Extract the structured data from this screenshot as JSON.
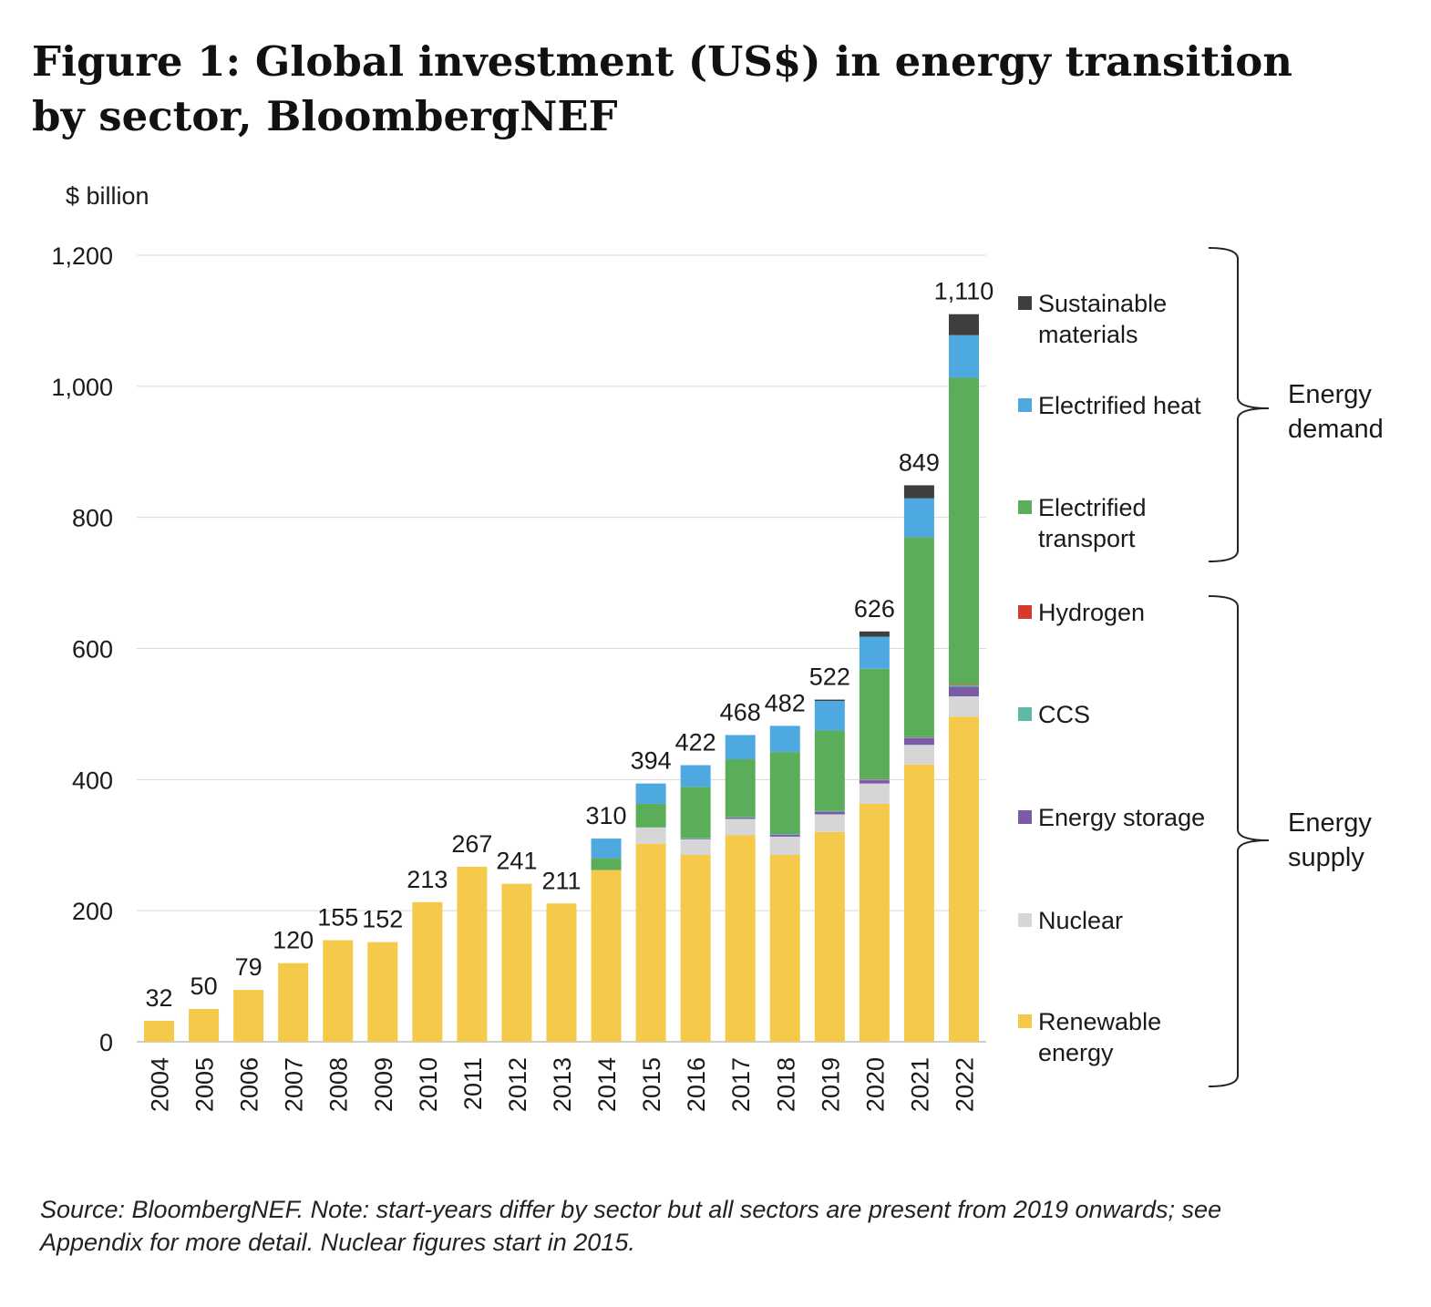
{
  "title_lines": [
    "Figure 1: Global investment (US$) in energy transition",
    "by sector, BloombergNEF"
  ],
  "source_lines": [
    "Source: BloombergNEF. Note: start-years differ by sector but all sectors are present from 2019 onwards; see",
    "Appendix for more detail. Nuclear figures start in 2015."
  ],
  "chart_data": {
    "type": "bar",
    "stacked": true,
    "ylabel": "$ billion",
    "ylim": [
      0,
      1200
    ],
    "yticks": [
      0,
      200,
      400,
      600,
      800,
      1000,
      1200
    ],
    "ytick_labels": [
      "0",
      "200",
      "400",
      "600",
      "800",
      "1,000",
      "1,200"
    ],
    "grid": true,
    "legend_position": "right",
    "categories": [
      "2004",
      "2005",
      "2006",
      "2007",
      "2008",
      "2009",
      "2010",
      "2011",
      "2012",
      "2013",
      "2014",
      "2015",
      "2016",
      "2017",
      "2018",
      "2019",
      "2020",
      "2021",
      "2022"
    ],
    "totals": [
      32,
      50,
      79,
      120,
      155,
      152,
      213,
      267,
      241,
      211,
      310,
      394,
      422,
      468,
      482,
      522,
      626,
      849,
      1110
    ],
    "total_labels": [
      "32",
      "50",
      "79",
      "120",
      "155",
      "152",
      "213",
      "267",
      "241",
      "211",
      "310",
      "394",
      "422",
      "468",
      "482",
      "522",
      "626",
      "849",
      "1,110"
    ],
    "series": [
      {
        "name": "Renewable energy",
        "color": "#F5C94A",
        "values": [
          32,
          50,
          79,
          120,
          155,
          152,
          213,
          267,
          241,
          211,
          262,
          302,
          285,
          315,
          285,
          320,
          363,
          423,
          496
        ]
      },
      {
        "name": "Nuclear",
        "color": "#D6D6D6",
        "values": [
          0,
          0,
          0,
          0,
          0,
          0,
          0,
          0,
          0,
          0,
          0,
          25,
          24,
          25,
          28,
          27,
          31,
          30,
          31
        ]
      },
      {
        "name": "Energy storage",
        "color": "#7B5BA6",
        "values": [
          0,
          0,
          0,
          0,
          0,
          0,
          0,
          0,
          0,
          0,
          0,
          0,
          1,
          2,
          3,
          4,
          5,
          10,
          15
        ]
      },
      {
        "name": "CCS",
        "color": "#5FB8A8",
        "values": [
          0,
          0,
          0,
          0,
          0,
          0,
          0,
          0,
          0,
          0,
          0,
          0,
          1,
          1,
          1,
          1,
          2,
          2,
          2
        ]
      },
      {
        "name": "Hydrogen",
        "color": "#D63A2F",
        "values": [
          0,
          0,
          0,
          0,
          0,
          0,
          0,
          0,
          0,
          0,
          0,
          0,
          0,
          0,
          0,
          0,
          1,
          1,
          1
        ]
      },
      {
        "name": "Electrified transport",
        "color": "#5AAE5A",
        "values": [
          0,
          0,
          0,
          0,
          0,
          0,
          0,
          0,
          0,
          0,
          18,
          36,
          78,
          88,
          125,
          123,
          167,
          304,
          468
        ]
      },
      {
        "name": "Electrified heat",
        "color": "#4DA9E0",
        "values": [
          0,
          0,
          0,
          0,
          0,
          0,
          0,
          0,
          0,
          0,
          30,
          31,
          33,
          37,
          40,
          45,
          49,
          59,
          65
        ]
      },
      {
        "name": "Sustainable materials",
        "color": "#3E3E3E",
        "values": [
          0,
          0,
          0,
          0,
          0,
          0,
          0,
          0,
          0,
          0,
          0,
          0,
          0,
          0,
          0,
          2,
          8,
          20,
          32
        ]
      }
    ],
    "legend": [
      {
        "lines": [
          "Sustainable",
          "materials"
        ],
        "color": "#3E3E3E"
      },
      {
        "lines": [
          "Electrified heat"
        ],
        "color": "#4DA9E0"
      },
      {
        "lines": [
          "Electrified",
          "transport"
        ],
        "color": "#5AAE5A"
      },
      {
        "lines": [
          "Hydrogen"
        ],
        "color": "#D63A2F"
      },
      {
        "lines": [
          "CCS"
        ],
        "color": "#5FB8A8"
      },
      {
        "lines": [
          "Energy storage"
        ],
        "color": "#7B5BA6"
      },
      {
        "lines": [
          "Nuclear"
        ],
        "color": "#D6D6D6"
      },
      {
        "lines": [
          "Renewable",
          "energy"
        ],
        "color": "#F5C94A"
      }
    ],
    "groups": [
      {
        "lines": [
          "Energy",
          "demand"
        ]
      },
      {
        "lines": [
          "Energy",
          "supply"
        ]
      }
    ]
  }
}
